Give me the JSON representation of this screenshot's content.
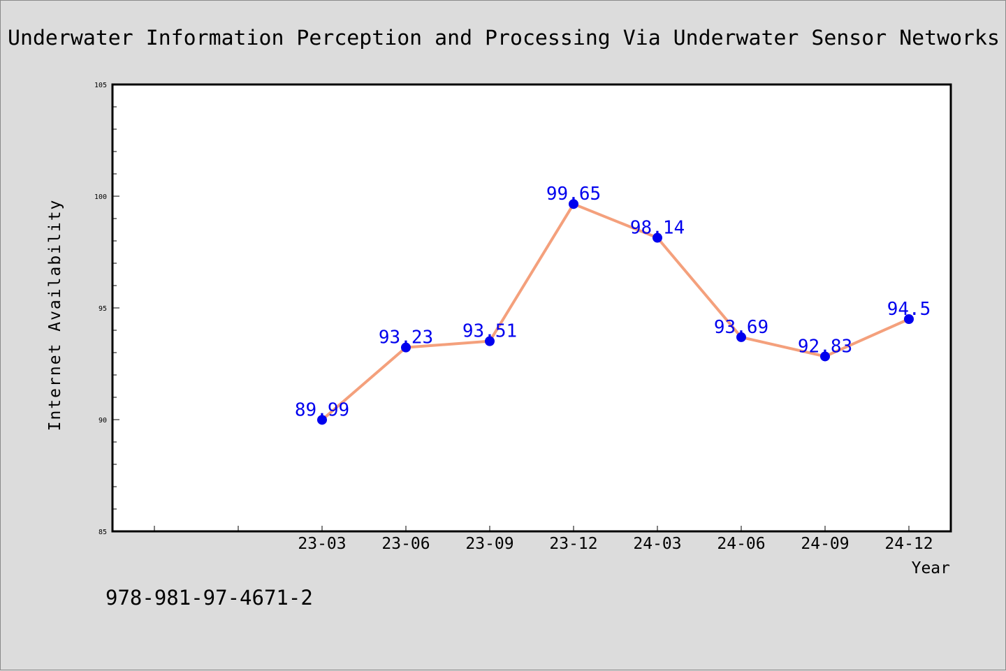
{
  "chart_data": {
    "type": "line",
    "title": "Underwater Information Perception and Processing Via Underwater Sensor Networks",
    "xlabel": "Year",
    "ylabel": "Internet Availability",
    "categories": [
      "23-03",
      "23-06",
      "23-09",
      "23-12",
      "24-03",
      "24-06",
      "24-09",
      "24-12"
    ],
    "series": [
      {
        "values": [
          89.99,
          93.23,
          93.51,
          99.65,
          98.14,
          93.69,
          92.83,
          94.5
        ]
      }
    ],
    "data_labels": [
      "89.99",
      "93.23",
      "93.51",
      "99.65",
      "98.14",
      "93.69",
      "92.83",
      "94.5"
    ],
    "ylim": [
      85,
      105
    ],
    "yticks": [
      85,
      90,
      95,
      100,
      105
    ],
    "grid": false,
    "colors": {
      "line": "#f4a07c",
      "marker": "#0000ee",
      "label": "#0000ee",
      "axis": "#000000",
      "background": "#dcdcdc",
      "plot_bg": "#ffffff"
    }
  },
  "footer_text": "978-981-97-4671-2"
}
